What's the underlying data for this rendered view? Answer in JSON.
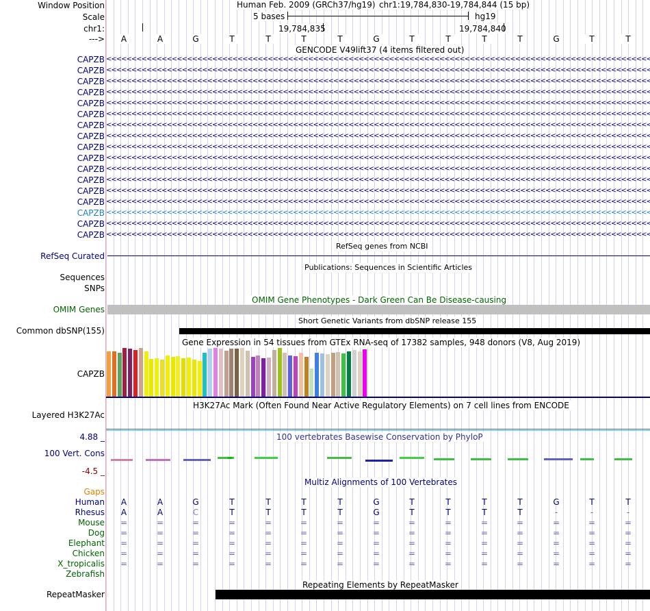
{
  "header": {
    "window_position_label": "Window Position",
    "scale_label": "Scale",
    "chrom_label": "chr1:",
    "arrow_label": "--->",
    "assembly": "Human Feb. 2009 (GRCh37/hg19)",
    "position": "chr1:19,784,830-19,784,844 (15 bp)",
    "scale_text": "5 bases",
    "db": "hg19",
    "coord1": "19,784,835",
    "coord2": "19,784,840"
  },
  "bases": [
    "A",
    "A",
    "G",
    "T",
    "T",
    "T",
    "T",
    "G",
    "T",
    "T",
    "T",
    "T",
    "G",
    "T",
    "T"
  ],
  "gencode": {
    "title": "GENCODE V49lift37 (4 items filtered out)",
    "labels": [
      "CAPZB",
      "CAPZB",
      "CAPZB",
      "CAPZB",
      "CAPZB",
      "CAPZB",
      "CAPZB",
      "CAPZB",
      "CAPZB",
      "CAPZB",
      "CAPZB",
      "CAPZB",
      "CAPZB",
      "CAPZB",
      "CAPZB",
      "CAPZB",
      "CAPZB"
    ],
    "strand_glyph": "<"
  },
  "refseq": {
    "title": "RefSeq genes from NCBI",
    "label": "RefSeq Curated"
  },
  "publications": {
    "title": "Publications: Sequences in Scientific Articles",
    "label1": "Sequences",
    "label2": "SNPs"
  },
  "omim": {
    "title": "OMIM Gene Phenotypes - Dark Green Can Be Disease-causing",
    "label": "OMIM Genes"
  },
  "dbsnp": {
    "title": "Short Genetic Variants from dbSNP release 155",
    "label": "Common dbSNP(155)"
  },
  "gtex": {
    "title": "Gene Expression in 54 tissues from GTEx RNA-seq of 17382 samples, 948 donors (V8, Aug 2019)",
    "label": "CAPZB"
  },
  "h3k27ac": {
    "title": "H3K27Ac Mark (Often Found Near Active Regulatory Elements) on 7 cell lines from ENCODE",
    "label": "Layered H3K27Ac"
  },
  "phylop": {
    "title": "100 vertebrates Basewise Conservation by PhyloP",
    "label": "100 Vert. Cons",
    "max": "4.88 _",
    "min": "-4.5 _"
  },
  "multiz": {
    "title": "Multiz Alignments of 100 Vertebrates",
    "gaps_label": "Gaps",
    "species": [
      {
        "name": "Human",
        "row": [
          "A",
          "A",
          "G",
          "T",
          "T",
          "T",
          "T",
          "G",
          "T",
          "T",
          "T",
          "T",
          "G",
          "T",
          "T"
        ]
      },
      {
        "name": "Rhesus",
        "row": [
          "A",
          "A",
          "C",
          "T",
          "T",
          "T",
          "T",
          "G",
          "T",
          "T",
          "T",
          "T",
          "-",
          "-",
          "-"
        ]
      },
      {
        "name": "Mouse",
        "row": [
          "=",
          "=",
          "=",
          "=",
          "=",
          "=",
          "=",
          "=",
          "=",
          "=",
          "=",
          "=",
          "=",
          "=",
          "="
        ]
      },
      {
        "name": "Dog",
        "row": [
          "=",
          "=",
          "=",
          "=",
          "=",
          "=",
          "=",
          "=",
          "=",
          "=",
          "=",
          "=",
          "=",
          "=",
          "="
        ]
      },
      {
        "name": "Elephant",
        "row": [
          "=",
          "=",
          "=",
          "=",
          "=",
          "=",
          "=",
          "=",
          "=",
          "=",
          "=",
          "=",
          "=",
          "=",
          "="
        ]
      },
      {
        "name": "Chicken",
        "row": [
          "=",
          "=",
          "=",
          "=",
          "=",
          "=",
          "=",
          "=",
          "=",
          "=",
          "=",
          "=",
          "=",
          "=",
          "="
        ]
      },
      {
        "name": "X_tropicalis",
        "row": [
          "=",
          "=",
          "=",
          "=",
          "=",
          "=",
          "=",
          "=",
          "=",
          "=",
          "=",
          "=",
          "=",
          "=",
          "="
        ]
      },
      {
        "name": "Zebrafish",
        "row": []
      }
    ]
  },
  "repeatmasker": {
    "title": "Repeating Elements by RepeatMasker",
    "label": "RepeatMasker"
  },
  "colors": {
    "navy": "#000080",
    "label_green": "#006400",
    "gaps_orange": "#e08000",
    "highlight": "#2080c0",
    "omim_bar": "#c0c0c0"
  }
}
